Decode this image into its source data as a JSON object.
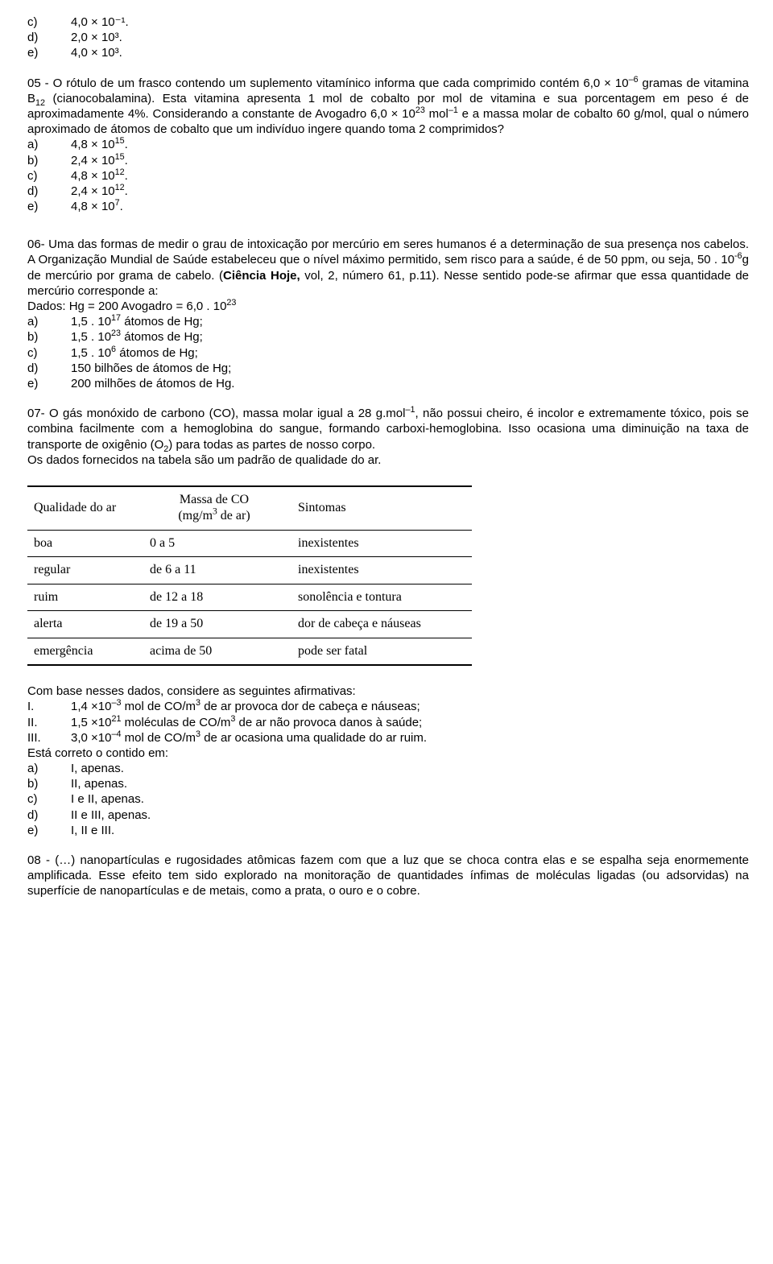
{
  "q04_tail": {
    "options": [
      {
        "letter": "c)",
        "text": "4,0 × 10⁻¹."
      },
      {
        "letter": "d)",
        "text": "2,0 × 10³."
      },
      {
        "letter": "e)",
        "text": "4,0 × 10³."
      }
    ]
  },
  "q05": {
    "prompt_html": "05 - O rótulo de um frasco contendo um suplemento vitamínico informa que cada comprimido contém 6,0 × 10<sup>–6</sup> gramas de vitamina B<sub>12</sub> (cianocobalamina). Esta vitamina apresenta 1 mol de cobalto por mol de vitamina e sua porcentagem em peso é de aproximadamente 4%. Considerando a constante de Avogadro 6,0 × 10<sup>23</sup> mol<sup>–1</sup> e a massa molar de cobalto 60 g/mol, qual o número aproximado de átomos de cobalto que um indivíduo ingere quando toma 2 comprimidos?",
    "options": [
      {
        "letter": "a)",
        "html": "4,8 × 10<sup>15</sup>."
      },
      {
        "letter": "b)",
        "html": "2,4 × 10<sup>15</sup>."
      },
      {
        "letter": "c)",
        "html": "4,8 × 10<sup>12</sup>."
      },
      {
        "letter": "d)",
        "html": "2,4 × 10<sup>12</sup>."
      },
      {
        "letter": "e)",
        "html": "4,8 × 10<sup>7</sup>."
      }
    ]
  },
  "q06": {
    "prompt_html": "06- Uma das formas de medir o grau de intoxicação por mercúrio em seres humanos é a determinação de sua presença nos cabelos. A Organização Mundial de Saúde estabeleceu que o nível  máximo permitido, sem risco para a saúde, é de 50 ppm, ou seja, 50 . 10<sup>-6</sup>g de mercúrio por grama de cabelo. (<b>Ciência Hoje,</b> vol, 2, número 61, p.11). Nesse  sentido pode-se afirmar que essa quantidade de mercúrio corresponde a:",
    "data_line_html": "Dados: Hg = 200 Avogadro = 6,0 . 10<sup>23</sup>",
    "options": [
      {
        "letter": "a)",
        "html": "1,5 . 10<sup>17</sup> átomos de Hg;"
      },
      {
        "letter": "b)",
        "html": "1,5 . 10<sup>23</sup> átomos de Hg;"
      },
      {
        "letter": "c)",
        "html": "1,5 . 10<sup>6</sup>  átomos de Hg;"
      },
      {
        "letter": "d)",
        "html": "150 bilhões de átomos de Hg;"
      },
      {
        "letter": "e)",
        "html": "200 milhões de átomos de Hg."
      }
    ]
  },
  "q07": {
    "prompt_html": "07- O gás monóxido de carbono (CO), massa molar igual a 28 g.mol<sup>–1</sup>, não possui cheiro, é incolor e extremamente tóxico, pois se combina facilmente com a hemoglobina do sangue, formando carboxi-hemoglobina. Isso ocasiona uma diminuição na taxa de transporte de oxigênio (O<sub>2</sub>) para todas as partes de nosso corpo.",
    "subline": "Os dados fornecidos na tabela são um padrão de qualidade do ar.",
    "table": {
      "headers": [
        "Qualidade do ar",
        "Massa de CO\n(mg/m³ de ar)",
        "Sintomas"
      ],
      "rows": [
        [
          "boa",
          "0 a 5",
          "inexistentes"
        ],
        [
          "regular",
          "de 6 a 11",
          "inexistentes"
        ],
        [
          "ruim",
          "de 12 a 18",
          "sonolência e tontura"
        ],
        [
          "alerta",
          "de 19 a 50",
          "dor de cabeça e náuseas"
        ],
        [
          "emergência",
          "acima de 50",
          "pode ser fatal"
        ]
      ]
    },
    "after_table": "Com base nesses dados, considere as seguintes afirmativas:",
    "statements": [
      {
        "num": "I.",
        "html": "1,4 ×10<sup>–3</sup> mol de CO/m<sup>3</sup> de ar provoca dor de cabeça e náuseas;"
      },
      {
        "num": "II.",
        "html": "1,5 ×10<sup>21</sup> moléculas de CO/m<sup>3</sup> de ar não provoca danos à saúde;"
      },
      {
        "num": "III.",
        "html": "3,0 ×10<sup>–4</sup> mol de CO/m<sup>3</sup> de ar ocasiona uma qualidade do ar ruim."
      }
    ],
    "correct_line": "Está correto o contido em:",
    "options": [
      {
        "letter": "a)",
        "text": "I, apenas."
      },
      {
        "letter": "b)",
        "text": "II, apenas."
      },
      {
        "letter": "c)",
        "text": "I e II, apenas."
      },
      {
        "letter": "d)",
        "text": "II e III, apenas."
      },
      {
        "letter": "e)",
        "text": "I, II e III."
      }
    ]
  },
  "q08": {
    "prompt_html": "08 - (…) nanopartículas e rugosidades atômicas fazem com que a luz que se choca contra elas e se espalha seja enormemente amplificada. Esse efeito tem sido explorado na monitoração de quantidades ínfimas de moléculas ligadas (ou adsorvidas) na superfície de nanopartículas e de metais, como a prata, o ouro e o cobre."
  }
}
